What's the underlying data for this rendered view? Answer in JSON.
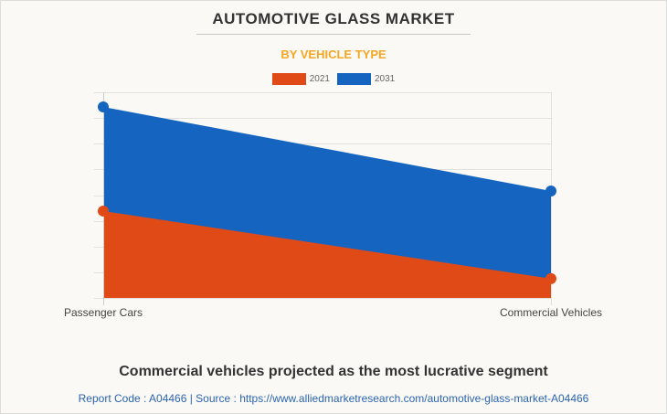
{
  "header": {
    "title": "AUTOMOTIVE GLASS MARKET",
    "subtitle": "BY VEHICLE TYPE"
  },
  "colors": {
    "series_2021": "#e04a17",
    "series_2031": "#1565c0",
    "subtitle": "#f5a623",
    "source": "#2b64b0"
  },
  "chart_data": {
    "type": "area",
    "title": "AUTOMOTIVE GLASS MARKET",
    "subtitle": "BY VEHICLE TYPE",
    "categories": [
      "Passenger Cars",
      "Commercial Vehicles"
    ],
    "series": [
      {
        "name": "2031",
        "color": "#1565c0",
        "values": [
          7.43,
          4.16
        ]
      },
      {
        "name": "2021",
        "color": "#e04a17",
        "values": [
          3.38,
          0.75
        ]
      }
    ],
    "xlabel": "",
    "ylabel": "",
    "ylim": [
      0,
      8
    ],
    "y_gridlines": 8,
    "y_units_note": "relative scale (no axis values shown)",
    "grid": true,
    "legend": "top-center"
  },
  "footer": {
    "caption": "Commercial vehicles projected as the most lucrative segment",
    "source": "Report Code : A04466  |  Source : https://www.alliedmarketresearch.com/automotive-glass-market-A04466"
  }
}
